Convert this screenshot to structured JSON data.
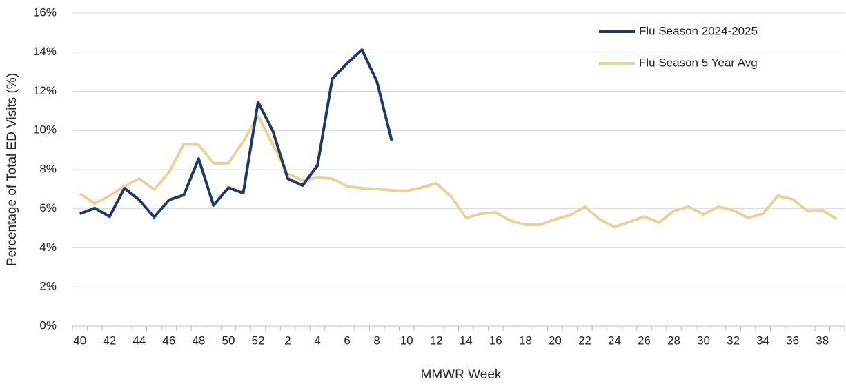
{
  "chart_data": {
    "type": "line",
    "x_label": "MMWR Week",
    "y_label": "Percentage of Total ED Visits (%)",
    "categories": [
      "40",
      null,
      "42",
      null,
      "44",
      null,
      "46",
      null,
      "48",
      null,
      "50",
      null,
      "52",
      null,
      "2",
      null,
      "4",
      null,
      "6",
      null,
      "8",
      null,
      "10",
      null,
      "12",
      null,
      "14",
      null,
      "16",
      null,
      "18",
      null,
      "20",
      null,
      "22",
      null,
      "24",
      null,
      "26",
      null,
      "28",
      null,
      "30",
      null,
      "32",
      null,
      "34",
      null,
      "36",
      null,
      "38",
      null
    ],
    "series": [
      {
        "name": "Flu Season 2024-2025",
        "color": "#203864",
        "values": [
          5.74,
          6.03,
          5.6,
          7.05,
          6.45,
          5.57,
          6.45,
          6.7,
          8.56,
          6.17,
          7.08,
          6.8,
          11.45,
          9.97,
          7.54,
          7.19,
          8.21,
          12.65,
          13.43,
          14.13,
          12.51,
          9.48,
          null,
          null,
          null,
          null,
          null,
          null,
          null,
          null,
          null,
          null,
          null,
          null,
          null,
          null,
          null,
          null,
          null,
          null,
          null,
          null,
          null,
          null,
          null,
          null,
          null,
          null,
          null,
          null,
          null,
          null
        ]
      },
      {
        "name": "Flu Season 5 Year Avg",
        "color": "#e6d39b",
        "values": [
          6.77,
          6.27,
          6.66,
          7.15,
          7.54,
          6.98,
          7.86,
          9.3,
          9.27,
          8.32,
          8.32,
          9.44,
          10.75,
          9.27,
          7.79,
          7.44,
          7.58,
          7.54,
          7.15,
          7.05,
          7.01,
          6.94,
          6.91,
          7.08,
          7.3,
          6.63,
          5.53,
          5.74,
          5.81,
          5.39,
          5.18,
          5.18,
          5.46,
          5.67,
          6.1,
          5.46,
          5.07,
          5.32,
          5.6,
          5.29,
          5.89,
          6.1,
          5.71,
          6.1,
          5.92,
          5.53,
          5.74,
          6.66,
          6.48,
          5.89,
          5.92,
          5.46
        ]
      }
    ],
    "ylim": [
      0,
      16
    ],
    "yticks": [
      {
        "value": 0,
        "label": "0%"
      },
      {
        "value": 2,
        "label": "2%"
      },
      {
        "value": 4,
        "label": "4%"
      },
      {
        "value": 6,
        "label": "6%"
      },
      {
        "value": 8,
        "label": "8%"
      },
      {
        "value": 10,
        "label": "10%"
      },
      {
        "value": 12,
        "label": "12%"
      },
      {
        "value": 14,
        "label": "14%"
      },
      {
        "value": 16,
        "label": "16%"
      }
    ],
    "grid": true,
    "legend": "top-right"
  }
}
